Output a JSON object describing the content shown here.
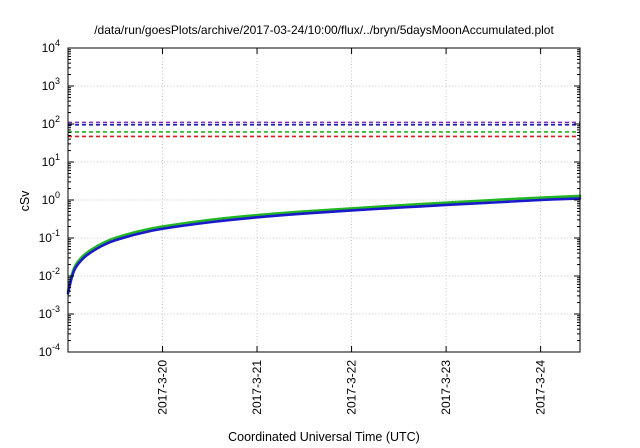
{
  "chart_data": {
    "type": "line",
    "title": "/data/run/goesPlots/archive/2017-03-24/10:00/flux/../bryn/5daysMoonAccumulated.plot",
    "xlabel": "Coordinated Universal Time (UTC)",
    "ylabel": "cSv",
    "y_scale": "log",
    "ylim": [
      0.0001,
      10000
    ],
    "xlim": [
      "2017-03-19T00:00",
      "2017-03-24T10:00"
    ],
    "y_ticks": [
      {
        "value": 0.0001,
        "base": "10",
        "exp": "-4"
      },
      {
        "value": 0.001,
        "base": "10",
        "exp": "-3"
      },
      {
        "value": 0.01,
        "base": "10",
        "exp": "-2"
      },
      {
        "value": 0.1,
        "base": "10",
        "exp": "-1"
      },
      {
        "value": 1,
        "base": "10",
        "exp": "0"
      },
      {
        "value": 10,
        "base": "10",
        "exp": "1"
      },
      {
        "value": 100,
        "base": "10",
        "exp": "2"
      },
      {
        "value": 1000,
        "base": "10",
        "exp": "3"
      },
      {
        "value": 10000,
        "base": "10",
        "exp": "4"
      }
    ],
    "x_ticks": [
      {
        "value": "2017-03-20T00:00",
        "label": "2017-3-20"
      },
      {
        "value": "2017-03-21T00:00",
        "label": "2017-3-21"
      },
      {
        "value": "2017-03-22T00:00",
        "label": "2017-3-22"
      },
      {
        "value": "2017-03-23T00:00",
        "label": "2017-3-23"
      },
      {
        "value": "2017-03-24T00:00",
        "label": "2017-3-24"
      }
    ],
    "grid": true,
    "threshold_lines": [
      {
        "y": 110,
        "color": "#7b2fbe",
        "style": "dashed"
      },
      {
        "y": 95,
        "color": "#2020c0",
        "style": "dashed"
      },
      {
        "y": 62,
        "color": "#22b622",
        "style": "dashed"
      },
      {
        "y": 47,
        "color": "#e01818",
        "style": "dashed"
      }
    ],
    "series": [
      {
        "color": "#22b622",
        "x": [
          "2017-03-19T00:00",
          "2017-03-19T01:00",
          "2017-03-19T02:00",
          "2017-03-19T04:00",
          "2017-03-19T06:00",
          "2017-03-19T09:00",
          "2017-03-19T12:00",
          "2017-03-19T18:00",
          "2017-03-20T00:00",
          "2017-03-20T12:00",
          "2017-03-21T00:00",
          "2017-03-21T12:00",
          "2017-03-22T00:00",
          "2017-03-22T12:00",
          "2017-03-23T00:00",
          "2017-03-23T12:00",
          "2017-03-24T00:00",
          "2017-03-24T10:00"
        ],
        "y": [
          0.004,
          0.011,
          0.02,
          0.035,
          0.05,
          0.075,
          0.1,
          0.15,
          0.2,
          0.3,
          0.4,
          0.5,
          0.6,
          0.72,
          0.85,
          1.0,
          1.15,
          1.28
        ]
      },
      {
        "color": "#1a1acc",
        "x": [
          "2017-03-19T00:00",
          "2017-03-19T01:00",
          "2017-03-19T02:00",
          "2017-03-19T04:00",
          "2017-03-19T06:00",
          "2017-03-19T09:00",
          "2017-03-19T12:00",
          "2017-03-19T18:00",
          "2017-03-20T00:00",
          "2017-03-20T12:00",
          "2017-03-21T00:00",
          "2017-03-21T12:00",
          "2017-03-22T00:00",
          "2017-03-22T12:00",
          "2017-03-23T00:00",
          "2017-03-23T12:00",
          "2017-03-24T00:00",
          "2017-03-24T10:00"
        ],
        "y": [
          0.0035,
          0.0095,
          0.017,
          0.03,
          0.043,
          0.065,
          0.087,
          0.13,
          0.175,
          0.26,
          0.35,
          0.44,
          0.53,
          0.63,
          0.74,
          0.86,
          1.0,
          1.1
        ]
      }
    ]
  }
}
